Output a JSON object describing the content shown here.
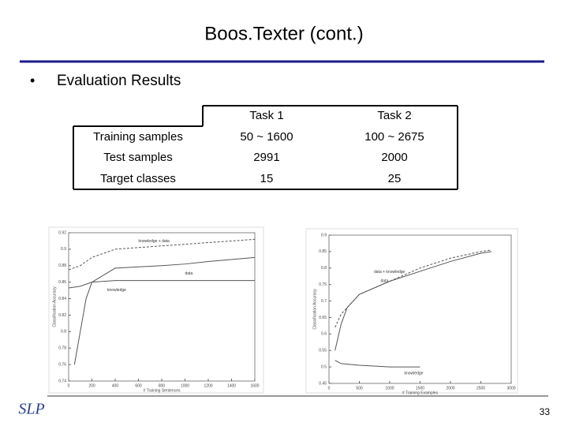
{
  "title": "Boos.Texter (cont.)",
  "bullet": "Evaluation Results",
  "table": {
    "header": [
      "Task 1",
      "Task 2"
    ],
    "rows": [
      [
        "Training samples",
        "50 ~ 1600",
        "100 ~ 2675"
      ],
      [
        "Test samples",
        "2991",
        "2000"
      ],
      [
        "Target classes",
        "15",
        "25"
      ]
    ]
  },
  "logo": "SLP",
  "page_number": 33,
  "chart_data": [
    {
      "type": "line",
      "x_label": "# Training Sentences",
      "y_label": "Classification Accuracy",
      "xlim": [
        0,
        1600
      ],
      "xticks": [
        0,
        200,
        400,
        600,
        800,
        1000,
        1200,
        1400,
        1600
      ],
      "ylim": [
        0.74,
        0.92
      ],
      "yticks": [
        0.74,
        0.76,
        0.78,
        0.8,
        0.82,
        0.84,
        0.86,
        0.88,
        0.9,
        0.92
      ],
      "series": [
        {
          "name": "knowledge + data",
          "color": "#555555",
          "dashed": true,
          "x": [
            0,
            100,
            200,
            400,
            600,
            800,
            1000,
            1200,
            1400,
            1600
          ],
          "values": [
            0.875,
            0.88,
            0.89,
            0.9,
            0.902,
            0.904,
            0.906,
            0.908,
            0.91,
            0.912
          ]
        },
        {
          "name": "data",
          "color": "#555555",
          "dashed": false,
          "x": [
            50,
            100,
            150,
            200,
            400,
            800,
            1000,
            1200,
            1600
          ],
          "values": [
            0.76,
            0.8,
            0.84,
            0.86,
            0.877,
            0.88,
            0.882,
            0.885,
            0.89
          ]
        },
        {
          "name": "knowledge",
          "color": "#555555",
          "dashed": false,
          "x": [
            0,
            100,
            200,
            400,
            800,
            1600
          ],
          "values": [
            0.853,
            0.855,
            0.86,
            0.862,
            0.862,
            0.862
          ]
        }
      ]
    },
    {
      "type": "line",
      "x_label": "# Training Examples",
      "y_label": "Classification Accuracy",
      "xlim": [
        0,
        3000
      ],
      "xticks": [
        0,
        500,
        1000,
        1500,
        2000,
        2500,
        3000
      ],
      "ylim": [
        0.45,
        0.9
      ],
      "yticks": [
        0.45,
        0.5,
        0.55,
        0.6,
        0.65,
        0.7,
        0.75,
        0.8,
        0.85,
        0.9
      ],
      "series": [
        {
          "name": "data + knowledge",
          "color": "#555555",
          "dashed": true,
          "x": [
            100,
            200,
            500,
            1000,
            1500,
            2000,
            2500,
            2675
          ],
          "values": [
            0.62,
            0.66,
            0.72,
            0.76,
            0.8,
            0.83,
            0.85,
            0.855
          ]
        },
        {
          "name": "data",
          "color": "#555555",
          "dashed": false,
          "x": [
            100,
            200,
            300,
            500,
            1000,
            1500,
            2000,
            2500,
            2675
          ],
          "values": [
            0.55,
            0.63,
            0.68,
            0.72,
            0.76,
            0.79,
            0.82,
            0.845,
            0.85
          ]
        },
        {
          "name": "knowledge",
          "color": "#555555",
          "dashed": false,
          "x": [
            100,
            200,
            500,
            1000,
            1500
          ],
          "values": [
            0.52,
            0.51,
            0.505,
            0.5,
            0.5
          ]
        }
      ]
    }
  ]
}
